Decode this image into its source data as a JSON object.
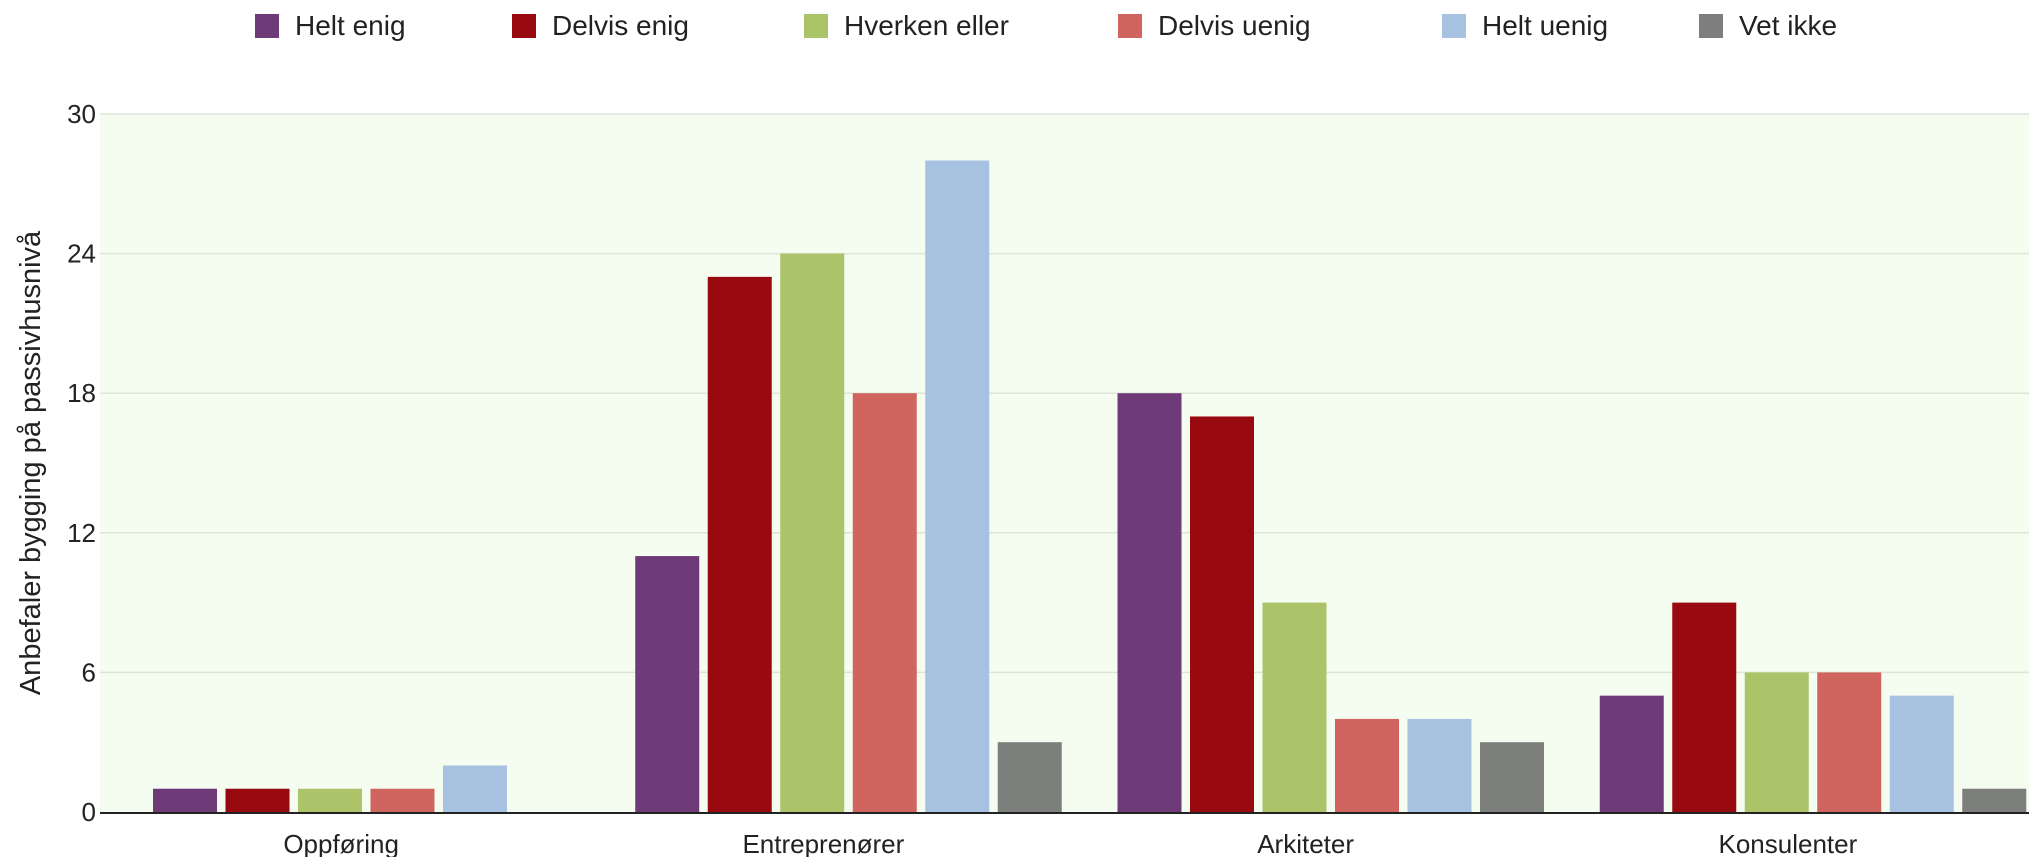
{
  "chart_data": {
    "type": "bar",
    "title": "",
    "xlabel": "",
    "ylabel": "Anbefaler bygging på passivhusnivå",
    "ylim": [
      0,
      30
    ],
    "yticks": [
      "0",
      "6",
      "12",
      "18",
      "24",
      "30"
    ],
    "grid": true,
    "legend_position": "top",
    "categories": [
      "Oppføring",
      "Entreprenører",
      "Arkiteter",
      "Konsulenter"
    ],
    "series": [
      {
        "name": "Helt enig",
        "color": "#6f3a78",
        "values": [
          1,
          11,
          18,
          5
        ]
      },
      {
        "name": "Delvis enig",
        "color": "#990910",
        "values": [
          1,
          23,
          17,
          9
        ]
      },
      {
        "name": "Hverken eller",
        "color": "#abc46a",
        "values": [
          1,
          24,
          9,
          6
        ]
      },
      {
        "name": "Delvis uenig",
        "color": "#d0645e",
        "values": [
          1,
          18,
          4,
          6
        ]
      },
      {
        "name": "Helt uenig",
        "color": "#a6c2e0",
        "values": [
          2,
          28,
          4,
          5
        ]
      },
      {
        "name": "Vet ikke",
        "color": "#7c7f7c",
        "values": [
          0,
          3,
          3,
          1
        ]
      }
    ],
    "plot_background": "#f5fcf0"
  }
}
